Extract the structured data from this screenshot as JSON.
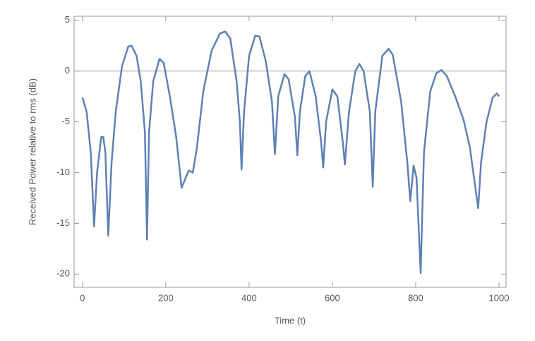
{
  "chart_data": {
    "type": "line",
    "x_label": "Time (t)",
    "y_label": "Received Power relative to rms (dB)",
    "xlim": [
      -20,
      1017
    ],
    "ylim": [
      -21.3,
      5.4
    ],
    "xticks": [
      0,
      200,
      400,
      600,
      800,
      1000
    ],
    "yticks": [
      5,
      0,
      -5,
      -10,
      -15,
      -20
    ],
    "zero_line": true,
    "series": [
      {
        "name": "Received Power",
        "color": "#5e81b5",
        "x": [
          0,
          10,
          20,
          28,
          35,
          45,
          50,
          55,
          62,
          70,
          80,
          95,
          110,
          118,
          130,
          140,
          150,
          155,
          160,
          170,
          185,
          195,
          210,
          225,
          238,
          245,
          255,
          265,
          275,
          290,
          310,
          330,
          343,
          355,
          370,
          378,
          382,
          388,
          400,
          415,
          425,
          440,
          455,
          462,
          470,
          485,
          495,
          510,
          516,
          522,
          535,
          545,
          560,
          573,
          578,
          585,
          600,
          612,
          625,
          630,
          640,
          655,
          665,
          675,
          690,
          697,
          703,
          720,
          735,
          745,
          765,
          780,
          787,
          795,
          802,
          812,
          820,
          835,
          850,
          862,
          875,
          895,
          915,
          930,
          945,
          950,
          957,
          970,
          985,
          995,
          1000
        ],
        "values": [
          -2.6,
          -4,
          -8,
          -15.3,
          -10,
          -6.5,
          -6.5,
          -8,
          -16.2,
          -9,
          -4,
          0.5,
          2.4,
          2.5,
          1.5,
          -1,
          -6,
          -16.6,
          -6,
          -1,
          1.2,
          0.8,
          -2.5,
          -6.5,
          -11.5,
          -10.8,
          -9.8,
          -10,
          -7.5,
          -2,
          2,
          3.7,
          3.9,
          3.2,
          -1,
          -5,
          -9.7,
          -4,
          1.5,
          3.5,
          3.4,
          1.0,
          -3,
          -8.2,
          -2.5,
          -0.3,
          -0.8,
          -4.5,
          -8.3,
          -4,
          -0.5,
          0,
          -2.5,
          -7,
          -9.5,
          -5,
          -1.8,
          -2.5,
          -7,
          -9.2,
          -4,
          0,
          0.7,
          0,
          -4,
          -11.4,
          -4,
          1.5,
          2.2,
          1.6,
          -3,
          -9,
          -12.8,
          -9.3,
          -10.5,
          -19.9,
          -8,
          -2,
          -0.2,
          0.1,
          -0.5,
          -2.5,
          -4.8,
          -7.5,
          -12,
          -13.5,
          -9,
          -5,
          -2.6,
          -2.2,
          -2.5
        ]
      }
    ]
  }
}
